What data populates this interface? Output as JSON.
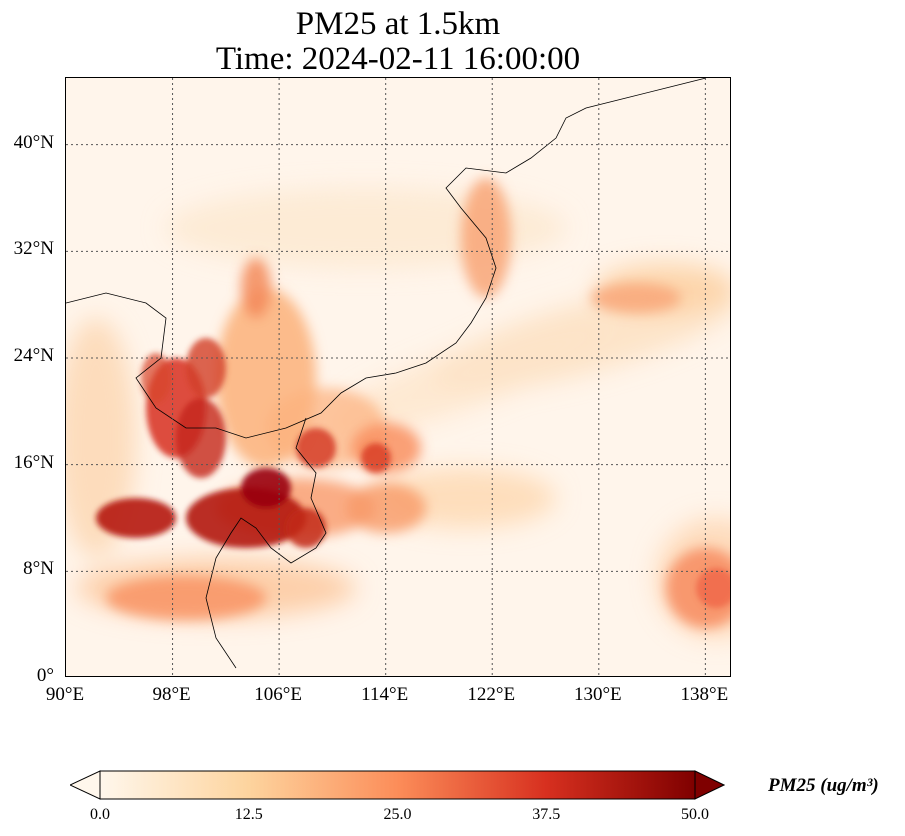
{
  "title": {
    "line1": "PM25 at 1.5km",
    "line2": "Time: 2024-02-11 16:00:00"
  },
  "map": {
    "lon_range": [
      90,
      140
    ],
    "lat_range": [
      0,
      45
    ],
    "gridlines": true,
    "lon_ticks": [
      "90°E",
      "98°E",
      "106°E",
      "114°E",
      "122°E",
      "130°E",
      "138°E"
    ],
    "lat_ticks": [
      "0°",
      "8°N",
      "16°N",
      "24°N",
      "32°N",
      "40°N"
    ],
    "lon_values": [
      90,
      98,
      106,
      114,
      122,
      130,
      138
    ],
    "lat_values": [
      0,
      8,
      16,
      24,
      32,
      40
    ],
    "colormap": "OrRd",
    "colors": [
      "#fff7ec",
      "#fdd49e",
      "#fc8d59",
      "#d7301f",
      "#7f0000"
    ]
  },
  "colorbar": {
    "label": "PM25 (ug/m³)",
    "ticks": [
      "0.0",
      "12.5",
      "25.0",
      "37.5",
      "50.0"
    ],
    "tick_values": [
      0,
      12.5,
      25,
      37.5,
      50
    ],
    "vmin": 0,
    "vmax": 50
  }
}
